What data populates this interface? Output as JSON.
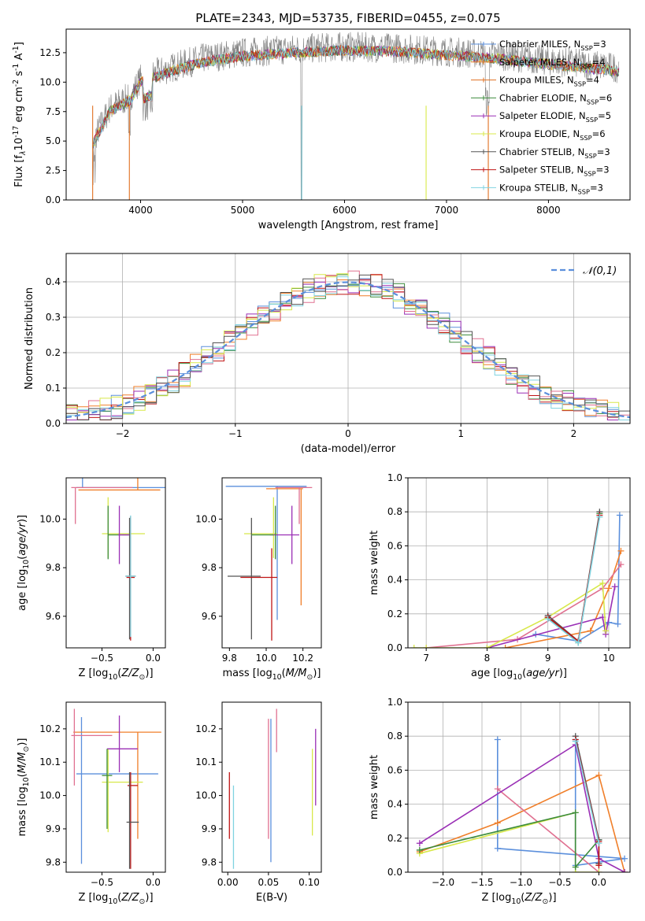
{
  "chart_data": [
    {
      "id": "spectrum",
      "type": "line",
      "title": "PLATE=2343, MJD=53735, FIBERID=0455, z=0.075",
      "xlabel": "wavelength [Angstrom, rest frame]",
      "ylabel": "Flux [f$_\\lambda$10$^{-17}$ erg cm$^{-2}$ s$^{-1}$ A$^{-1}$]",
      "xlim": [
        3270,
        8800
      ],
      "ylim": [
        0,
        14.5
      ],
      "xticks": [
        4000,
        5000,
        6000,
        7000,
        8000
      ],
      "yticks": [
        0.0,
        2.5,
        5.0,
        7.5,
        10.0,
        12.5
      ],
      "grid": false,
      "legend_position": "right",
      "data_range_x": [
        3530,
        8690
      ],
      "data_envelope": [
        [
          3530,
          5.0
        ],
        [
          3700,
          7.8
        ],
        [
          3900,
          8.8
        ],
        [
          4000,
          10.3
        ],
        [
          4300,
          11.2
        ],
        [
          4600,
          12.0
        ],
        [
          5000,
          12.5
        ],
        [
          5500,
          12.8
        ],
        [
          6000,
          13.0
        ],
        [
          6500,
          12.9
        ],
        [
          7000,
          12.6
        ],
        [
          7500,
          12.3
        ],
        [
          8000,
          11.8
        ],
        [
          8500,
          11.4
        ],
        [
          8690,
          11.2
        ]
      ],
      "series": [
        {
          "name": "Chabrier MILES, N$_{SSP}$=3",
          "color": "#5b8fdc"
        },
        {
          "name": "Salpeter MILES, N$_{SSP}$=4",
          "color": "#f07f2a"
        },
        {
          "name": "Kroupa MILES, N$_{SSP}$=4",
          "color": "#e07020"
        },
        {
          "name": "Chabrier ELODIE, N$_{SSP}$=6",
          "color": "#3d8c3d"
        },
        {
          "name": "Salpeter ELODIE, N$_{SSP}$=5",
          "color": "#9a2fb5"
        },
        {
          "name": "Kroupa ELODIE, N$_{SSP}$=6",
          "color": "#d8e84a"
        },
        {
          "name": "Chabrier STELIB, N$_{SSP}$=3",
          "color": "#555555"
        },
        {
          "name": "Salpeter STELIB, N$_{SSP}$=3",
          "color": "#c01515"
        },
        {
          "name": "Kroupa STELIB, N$_{SSP}$=3",
          "color": "#7fd3e0"
        }
      ]
    },
    {
      "id": "residuals",
      "type": "line",
      "xlabel": "(data-model)/error",
      "ylabel": "Normed distribution",
      "xlim": [
        -2.5,
        2.5
      ],
      "ylim": [
        0,
        0.48
      ],
      "xticks": [
        -2,
        -1,
        0,
        1,
        2
      ],
      "yticks": [
        0.0,
        0.1,
        0.2,
        0.3,
        0.4
      ],
      "grid": true,
      "legend_position": "top-right",
      "series": [
        {
          "name": "$\\mathcal{N}(0,1)$",
          "color": "#5b8fdc",
          "style": "dashed"
        }
      ],
      "step_colors": [
        "#5b8fdc",
        "#f07f2a",
        "#3d8c3d",
        "#9a2fb5",
        "#c01515",
        "#e07090",
        "#d8e84a",
        "#7fd3e0",
        "#555555"
      ]
    },
    {
      "id": "z_age",
      "type": "scatter",
      "xlabel": "Z [log$_{10}$($Z/Z_\\odot$)]",
      "ylabel": "age  [log$_{10}$($age/yr$)]",
      "xlim": [
        -0.85,
        0.12
      ],
      "ylim": [
        9.47,
        10.17
      ],
      "xticks": [
        -0.5,
        0.0
      ],
      "yticks": [
        9.6,
        9.8,
        10.0
      ],
      "points": [
        {
          "x": -0.3,
          "y": 10.13,
          "xerr": 0.45,
          "yerr": [
            0.0,
            0.53
          ],
          "color": "#5b8fdc",
          "cx": -0.69
        },
        {
          "x": -0.33,
          "y": 10.12,
          "xerr": 0.4,
          "yerr": [
            0.0,
            0.48
          ],
          "color": "#f07f2a",
          "cx": -0.15
        },
        {
          "x": -0.5,
          "y": 10.13,
          "xerr": 0.3,
          "yerr": [
            0.15,
            0.0
          ],
          "color": "#e07090",
          "cx": -0.76
        },
        {
          "x": -0.29,
          "y": 9.94,
          "xerr": 0.21,
          "yerr": [
            0.1,
            0.15
          ],
          "color": "#d8e84a",
          "cx": -0.44
        },
        {
          "x": -0.34,
          "y": 9.935,
          "xerr": 0.1,
          "yerr": [
            0.1,
            0.12
          ],
          "color": "#3d8c3d",
          "cx": -0.44
        },
        {
          "x": -0.28,
          "y": 9.935,
          "xerr": 0.06,
          "yerr": [
            0.12,
            0.12
          ],
          "color": "#9a2fb5",
          "cx": -0.33
        },
        {
          "x": -0.22,
          "y": 9.765,
          "xerr": 0.05,
          "yerr": [
            0.26,
            0.24
          ],
          "color": "#555555",
          "cx": -0.23
        },
        {
          "x": -0.22,
          "y": 9.76,
          "xerr": 0.04,
          "yerr": [
            0.26,
            0.25
          ],
          "color": "#c01515",
          "cx": -0.22
        },
        {
          "x": -0.22,
          "y": 9.765,
          "xerr": 0.05,
          "yerr": [
            0.25,
            0.25
          ],
          "color": "#7fd3e0",
          "cx": -0.22
        }
      ]
    },
    {
      "id": "mass_age",
      "type": "scatter",
      "xlabel": "mass [log$_{10}$($M/M_\\odot$)]",
      "ylabel": "",
      "xlim": [
        9.76,
        10.3
      ],
      "ylim": [
        9.47,
        10.17
      ],
      "xticks": [
        9.8,
        10.0,
        10.2
      ],
      "yticks": [
        9.6,
        9.8,
        10.0
      ],
      "points": [
        {
          "x": 10.0,
          "y": 10.135,
          "xerr": 0.22,
          "yerr": [
            0.0,
            0.0
          ],
          "color": "#5b8fdc",
          "cx": 10.06,
          "cyerr": [
            0.55,
            0.0
          ]
        },
        {
          "x": 10.1,
          "y": 10.125,
          "xerr": 0.1,
          "yerr": [
            0.0,
            0.0
          ],
          "color": "#f07f2a",
          "cx": 10.19,
          "cyerr": [
            0.48,
            0.0
          ]
        },
        {
          "x": 10.15,
          "y": 10.13,
          "xerr": 0.1,
          "yerr": [
            0.0,
            0.0
          ],
          "color": "#e07090",
          "cx": 10.18,
          "cyerr": [
            0.15,
            0.0
          ]
        },
        {
          "x": 9.97,
          "y": 9.94,
          "xerr": 0.09,
          "yerr": [
            0.0,
            0.0
          ],
          "color": "#d8e84a",
          "cx": 10.04,
          "cyerr": [
            0.1,
            0.15
          ]
        },
        {
          "x": 10.1,
          "y": 9.935,
          "xerr": 0.08,
          "yerr": [
            0.0,
            0.0
          ],
          "color": "#9a2fb5",
          "cx": 10.14,
          "cyerr": [
            0.12,
            0.12
          ]
        },
        {
          "x": 9.88,
          "y": 9.765,
          "xerr": 0.09,
          "yerr": [
            0.0,
            0.0
          ],
          "color": "#555555",
          "cx": 9.92,
          "cyerr": [
            0.26,
            0.24
          ]
        },
        {
          "x": 9.96,
          "y": 9.76,
          "xerr": 0.1,
          "yerr": [
            0.0,
            0.0
          ],
          "color": "#c01515",
          "cx": 10.03,
          "cyerr": [
            0.26,
            0.12
          ]
        },
        {
          "x": 9.98,
          "y": 9.935,
          "xerr": 0.06,
          "yerr": [
            0.0,
            0.0
          ],
          "color": "#3d8c3d",
          "cx": 10.05,
          "cyerr": [
            0.1,
            0.12
          ]
        }
      ]
    },
    {
      "id": "age_weight",
      "type": "line",
      "xlabel": "age  [log$_{10}$($age/yr$)]",
      "ylabel": "mass weight",
      "xlim": [
        6.7,
        10.35
      ],
      "ylim": [
        0,
        1.0
      ],
      "xticks": [
        7,
        8,
        9,
        10
      ],
      "yticks": [
        0.0,
        0.2,
        0.4,
        0.6,
        0.8,
        1.0
      ],
      "grid": true,
      "series": [
        {
          "color": "#5b8fdc",
          "x": [
            8.8,
            9.5,
            10.0,
            10.15,
            10.18
          ],
          "y": [
            0.08,
            0.04,
            0.15,
            0.14,
            0.78
          ]
        },
        {
          "color": "#f07f2a",
          "x": [
            8.3,
            9.7,
            10.0,
            10.2
          ],
          "y": [
            0.0,
            0.1,
            0.35,
            0.57
          ]
        },
        {
          "color": "#e07090",
          "x": [
            7.0,
            8.5,
            9.9,
            10.2
          ],
          "y": [
            0.0,
            0.05,
            0.35,
            0.49
          ]
        },
        {
          "color": "#9a2fb5",
          "x": [
            8.0,
            9.9,
            9.95,
            10.1
          ],
          "y": [
            0.0,
            0.18,
            0.08,
            0.36
          ]
        },
        {
          "color": "#d8e84a",
          "x": [
            6.8,
            7.0,
            8.0,
            9.0,
            9.9,
            9.95
          ],
          "y": [
            0.0,
            0.0,
            0.0,
            0.18,
            0.38,
            0.1
          ]
        },
        {
          "color": "#3d8c3d",
          "x": [
            9.0,
            9.5,
            9.85
          ],
          "y": [
            0.18,
            0.03,
            0.79
          ]
        },
        {
          "color": "#555555",
          "x": [
            9.0,
            9.5,
            9.85
          ],
          "y": [
            0.19,
            0.04,
            0.8
          ]
        },
        {
          "color": "#c01515",
          "x": [
            9.0,
            9.5,
            9.85
          ],
          "y": [
            0.18,
            0.04,
            0.78
          ]
        },
        {
          "color": "#7fd3e0",
          "x": [
            9.0,
            9.5,
            9.85
          ],
          "y": [
            0.17,
            0.03,
            0.77
          ]
        }
      ]
    },
    {
      "id": "z_mass",
      "type": "scatter",
      "xlabel": "Z [log$_{10}$($Z/Z_\\odot$)]",
      "ylabel": "mass [log$_{10}$($M/M_\\odot$)]",
      "xlim": [
        -0.85,
        0.12
      ],
      "ylim": [
        9.77,
        10.28
      ],
      "xticks": [
        -0.5,
        0.0
      ],
      "yticks": [
        9.8,
        9.9,
        10.0,
        10.1,
        10.2
      ],
      "points": [
        {
          "x": -0.35,
          "y": 10.065,
          "xerr": 0.4,
          "yerr": [
            0.27,
            0.17
          ],
          "color": "#5b8fdc",
          "cx": -0.7
        },
        {
          "x": -0.35,
          "y": 10.19,
          "xerr": 0.43,
          "yerr": [
            0.0,
            0.0
          ],
          "color": "#f07f2a",
          "cx": -0.15,
          "cyerr": [
            0.32,
            0.0
          ]
        },
        {
          "x": -0.6,
          "y": 10.18,
          "xerr": 0.2,
          "yerr": [
            0.0,
            0.0
          ],
          "color": "#e07090",
          "cx": -0.77,
          "cyerr": [
            0.15,
            0.08
          ]
        },
        {
          "x": -0.3,
          "y": 10.04,
          "xerr": 0.2,
          "yerr": [
            0.0,
            0.0
          ],
          "color": "#d8e84a",
          "cx": -0.44,
          "cyerr": [
            0.15,
            0.1
          ]
        },
        {
          "x": -0.3,
          "y": 10.14,
          "xerr": 0.15,
          "yerr": [
            0.0,
            0.0
          ],
          "color": "#9a2fb5",
          "cx": -0.33,
          "cyerr": [
            0.07,
            0.1
          ]
        },
        {
          "x": -0.2,
          "y": 10.03,
          "xerr": 0.05,
          "yerr": [
            0.0,
            0.0
          ],
          "color": "#c01515",
          "cx": -0.22,
          "cyerr": [
            0.25,
            0.04
          ]
        },
        {
          "x": -0.2,
          "y": 9.92,
          "xerr": 0.06,
          "yerr": [
            0.0,
            0.0
          ],
          "color": "#555555",
          "cx": -0.23,
          "cyerr": [
            0.14,
            0.15
          ]
        },
        {
          "x": -0.45,
          "y": 10.06,
          "xerr": 0.05,
          "yerr": [
            0.0,
            0.0
          ],
          "color": "#3d8c3d",
          "cx": -0.45,
          "cyerr": [
            0.16,
            0.08
          ]
        }
      ]
    },
    {
      "id": "ebv_mass",
      "type": "scatter",
      "xlabel": "E(B-V)",
      "ylabel": "",
      "xlim": [
        -0.007,
        0.115
      ],
      "ylim": [
        9.77,
        10.28
      ],
      "xticks": [
        0.0,
        0.05,
        0.1
      ],
      "yticks": [
        9.8,
        9.9,
        10.0,
        10.1,
        10.2
      ],
      "points": [
        {
          "x": 0.002,
          "y": 9.97,
          "yerr": [
            0.1,
            0.1
          ],
          "color": "#c01515"
        },
        {
          "x": 0.007,
          "y": 9.9,
          "yerr": [
            0.12,
            0.13
          ],
          "color": "#7fd3e0"
        },
        {
          "x": 0.05,
          "y": 10.1,
          "yerr": [
            0.23,
            0.13
          ],
          "color": "#e07090"
        },
        {
          "x": 0.053,
          "y": 10.0,
          "yerr": [
            0.2,
            0.23
          ],
          "color": "#5b8fdc"
        },
        {
          "x": 0.06,
          "y": 10.2,
          "yerr": [
            0.07,
            0.06
          ],
          "color": "#e07090"
        },
        {
          "x": 0.104,
          "y": 10.0,
          "yerr": [
            0.12,
            0.14
          ],
          "color": "#d8e84a"
        },
        {
          "x": 0.108,
          "y": 10.07,
          "yerr": [
            0.1,
            0.13
          ],
          "color": "#9a2fb5"
        }
      ]
    },
    {
      "id": "z_weight",
      "type": "line",
      "xlabel": "Z [log$_{10}$($Z/Z_\\odot$)]",
      "ylabel": "mass weight",
      "xlim": [
        -2.45,
        0.4
      ],
      "ylim": [
        0,
        1.0
      ],
      "xticks": [
        -2.0,
        -1.5,
        -1.0,
        -0.5,
        0.0
      ],
      "yticks": [
        0.0,
        0.2,
        0.4,
        0.6,
        0.8,
        1.0
      ],
      "grid": true,
      "series": [
        {
          "color": "#5b8fdc",
          "x": [
            -1.3,
            -1.3,
            0.33,
            -0.3,
            -0.3
          ],
          "y": [
            0.78,
            0.14,
            0.08,
            0.04,
            0.78
          ]
        },
        {
          "color": "#f07f2a",
          "x": [
            -2.3,
            -1.3,
            0.0,
            0.33
          ],
          "y": [
            0.12,
            0.29,
            0.57,
            0.0
          ]
        },
        {
          "color": "#e07090",
          "x": [
            -1.3,
            0.0
          ],
          "y": [
            0.49,
            0.0
          ]
        },
        {
          "color": "#9a2fb5",
          "x": [
            -2.3,
            -0.3,
            0.0,
            0.33
          ],
          "y": [
            0.17,
            0.75,
            0.08,
            0.0
          ]
        },
        {
          "color": "#d8e84a",
          "x": [
            -2.3,
            -0.3,
            -0.3,
            0.0
          ],
          "y": [
            0.11,
            0.35,
            0.0,
            0.0
          ]
        },
        {
          "color": "#3d8c3d",
          "x": [
            -2.3,
            -0.3,
            -0.3,
            0.0
          ],
          "y": [
            0.13,
            0.35,
            0.03,
            0.19
          ]
        },
        {
          "color": "#555555",
          "x": [
            -0.3,
            0.0,
            0.0
          ],
          "y": [
            0.8,
            0.19,
            0.05
          ]
        },
        {
          "color": "#c01515",
          "x": [
            -0.3,
            0.0,
            0.0
          ],
          "y": [
            0.78,
            0.18,
            0.04
          ]
        },
        {
          "color": "#7fd3e0",
          "x": [
            -0.3,
            0.0
          ],
          "y": [
            0.77,
            0.17
          ]
        }
      ]
    }
  ]
}
